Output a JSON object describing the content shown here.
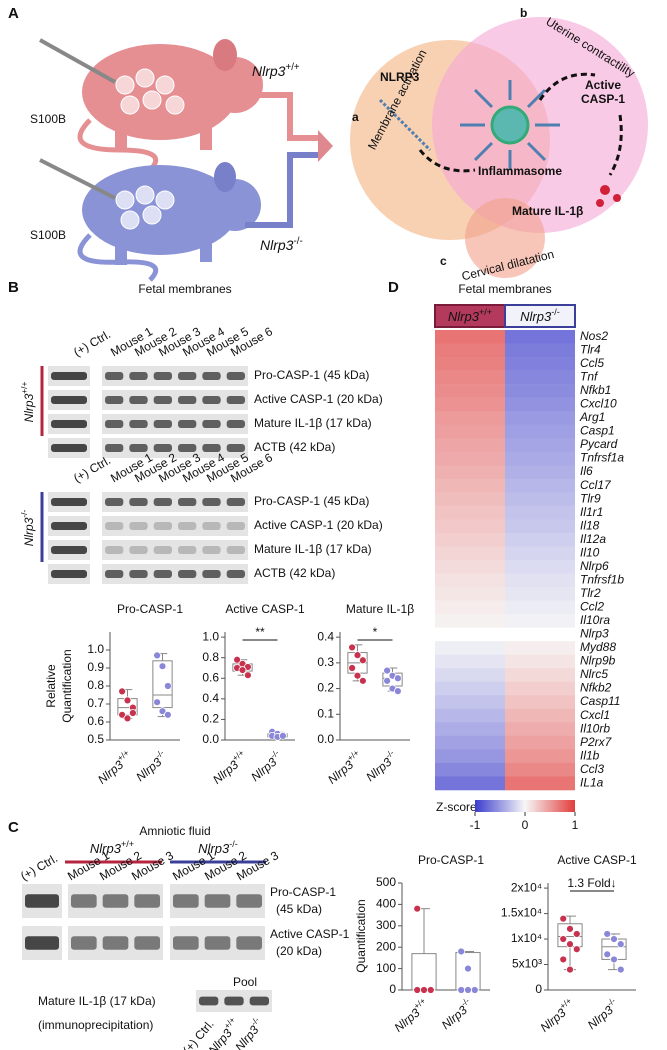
{
  "genotypes": [
    {
      "name": "Nlrp3",
      "sup": "+/+"
    },
    {
      "name": "Nlrp3",
      "sup": "-/-"
    }
  ],
  "panel_a": {
    "letter": "A",
    "stimulus": "S100B",
    "circles": [
      {
        "letter": "a",
        "label": "Membrane activation"
      },
      {
        "letter": "b",
        "label": "Uterine contractility"
      },
      {
        "letter": "c",
        "label": "Cervical dilatation"
      }
    ],
    "nlrp3": "NLRP3",
    "active_casp1": [
      "Active",
      "CASP-1"
    ],
    "inflammasome": "Inflammasome",
    "mature_il1b": "Mature IL-1β"
  },
  "panel_b": {
    "letter": "B",
    "tissue": "Fetal membranes",
    "ctrl": "(+) Ctrl.",
    "mice": [
      "Mouse 1",
      "Mouse 2",
      "Mouse 3",
      "Mouse 4",
      "Mouse 5",
      "Mouse 6"
    ],
    "bands": [
      "Pro-CASP-1 (45 kDa)",
      "Active CASP-1 (20 kDa)",
      "Mature IL-1β (17 kDa)",
      "ACTB (42 kDa)"
    ],
    "ylabel": [
      "Relative",
      "Quantification"
    ],
    "charts": [
      {
        "type": "box",
        "title": "Pro-CASP-1",
        "ylim": [
          0.5,
          1.1
        ],
        "yticks": [
          0.5,
          0.6,
          0.7,
          0.8,
          0.9,
          {
            "value": 1,
            "label": "1.0"
          }
        ],
        "groups": [
          {
            "color": "#c8324e",
            "points": [
              0.77,
              0.72,
              0.68,
              0.64,
              0.62,
              0.65
            ],
            "box": {
              "min": 0.62,
              "q1": 0.64,
              "median": 0.68,
              "q3": 0.73,
              "max": 0.78
            }
          },
          {
            "color": "#8a86d8",
            "points": [
              0.97,
              0.91,
              0.8,
              0.71,
              0.66,
              0.64
            ],
            "box": {
              "min": 0.63,
              "q1": 0.68,
              "median": 0.75,
              "q3": 0.94,
              "max": 0.98
            }
          }
        ]
      },
      {
        "type": "box",
        "title": "Active CASP-1",
        "ylim": [
          0,
          1.05
        ],
        "yticks": [
          {
            "value": 0,
            "label": "0.0"
          },
          0.2,
          0.4,
          0.6,
          0.8,
          {
            "value": 1,
            "label": "1.0"
          }
        ],
        "significance": "**",
        "groups": [
          {
            "color": "#c8324e",
            "points": [
              0.78,
              0.74,
              0.71,
              0.7,
              0.68,
              0.63
            ],
            "box": {
              "min": 0.63,
              "q1": 0.67,
              "median": 0.7,
              "q3": 0.74,
              "max": 0.78
            }
          },
          {
            "color": "#8a86d8",
            "points": [
              0.08,
              0.06,
              0.05,
              0.04,
              0.03,
              0.04
            ],
            "box": {
              "min": 0.02,
              "q1": 0.03,
              "median": 0.05,
              "q3": 0.06,
              "max": 0.08
            }
          }
        ]
      },
      {
        "type": "box",
        "title": "Mature IL-1β",
        "ylim": [
          0,
          0.42
        ],
        "yticks": [
          {
            "value": 0,
            "label": "0.0"
          },
          0.1,
          0.2,
          0.3,
          0.4
        ],
        "significance": "*",
        "groups": [
          {
            "color": "#c8324e",
            "points": [
              0.36,
              0.33,
              0.31,
              0.28,
              0.25,
              0.23
            ],
            "box": {
              "min": 0.23,
              "q1": 0.26,
              "median": 0.3,
              "q3": 0.34,
              "max": 0.37
            }
          },
          {
            "color": "#8a86d8",
            "points": [
              0.27,
              0.25,
              0.24,
              0.23,
              0.2,
              0.19
            ],
            "box": {
              "min": 0.19,
              "q1": 0.21,
              "median": 0.24,
              "q3": 0.26,
              "max": 0.28
            }
          }
        ]
      }
    ]
  },
  "panel_c": {
    "letter": "C",
    "tissue": "Amniotic fluid",
    "ctrl": "(+) Ctrl.",
    "mice": [
      "Mouse 1",
      "Mouse 2",
      "Mouse 3"
    ],
    "bands": [
      [
        "Pro-CASP-1",
        "(45 kDa)"
      ],
      [
        "Active CASP-1",
        "(20 kDa)"
      ]
    ],
    "pool": "Pool",
    "ip_label": [
      "Mature IL-1β (17 kDa)",
      "(immunoprecipitation)"
    ],
    "ylabel": "Quantification",
    "charts": [
      {
        "type": "box",
        "title": "Pro-CASP-1",
        "ylim": [
          0,
          500
        ],
        "yticks": [
          0,
          100,
          200,
          300,
          400,
          500
        ],
        "groups": [
          {
            "color": "#c8324e",
            "points": [
              380,
              0,
              0,
              0,
              0,
              0
            ],
            "box": {
              "min": 0,
              "q1": 0,
              "median": 0,
              "q3": 170,
              "max": 380
            }
          },
          {
            "color": "#8a86d8",
            "points": [
              180,
              100,
              0,
              0,
              0
            ],
            "box": {
              "min": 0,
              "q1": 0,
              "median": 0,
              "q3": 175,
              "max": 180
            }
          }
        ]
      },
      {
        "type": "box",
        "title": "Active CASP-1",
        "ylim": [
          0,
          21000
        ],
        "yticks": [
          0,
          {
            "value": 5000,
            "label": "5x10³"
          },
          {
            "value": 10000,
            "label": "1x10⁴"
          },
          {
            "value": 15000,
            "label": "1.5x10⁴"
          },
          {
            "value": 20000,
            "label": "2x10⁴"
          }
        ],
        "significance": "1.3 Fold↓",
        "groups": [
          {
            "color": "#c8324e",
            "points": [
              14000,
              12000,
              11000,
              10000,
              9000,
              8000,
              6000,
              4000
            ],
            "box": {
              "min": 4000,
              "q1": 8500,
              "median": 10500,
              "q3": 13000,
              "max": 14500
            }
          },
          {
            "color": "#8a86d8",
            "points": [
              11000,
              10000,
              9000,
              7000,
              6000,
              4000
            ],
            "box": {
              "min": 4000,
              "q1": 6000,
              "median": 8500,
              "q3": 10000,
              "max": 11000
            }
          }
        ]
      }
    ]
  },
  "panel_d": {
    "letter": "D",
    "tissue": "Fetal membranes",
    "genes": [
      "Nos2",
      "Tlr4",
      "Ccl5",
      "Tnf",
      "Nfkb1",
      "Cxcl10",
      "Arg1",
      "Casp1",
      "Pycard",
      "Tnfrsf1a",
      "Il6",
      "Ccl17",
      "Tlr9",
      "Il1r1",
      "Il18",
      "Il12a",
      "Il10",
      "Nlrp6",
      "Tnfrsf1b",
      "Tlr2",
      "Ccl2",
      "Il10ra",
      "Nlrp3",
      "Myd88",
      "Nlrp9b",
      "Nlrc5",
      "Nfkb2",
      "Casp11",
      "Cxcl1",
      "Il10rb",
      "P2rx7",
      "Il1b",
      "Ccl3",
      "IL1a"
    ],
    "series": [
      {
        "values": [
          0.7,
          0.66,
          0.63,
          0.6,
          0.57,
          0.54,
          0.5,
          0.47,
          0.44,
          0.41,
          0.38,
          0.34,
          0.31,
          0.28,
          0.25,
          0.22,
          0.18,
          0.15,
          0.12,
          0.09,
          0.06,
          0.03,
          null,
          -0.05,
          -0.1,
          -0.16,
          -0.22,
          -0.28,
          -0.34,
          -0.4,
          -0.46,
          -0.52,
          -0.6,
          -0.7
        ]
      },
      {
        "values": [
          -0.7,
          -0.66,
          -0.63,
          -0.6,
          -0.57,
          -0.54,
          -0.5,
          -0.47,
          -0.44,
          -0.41,
          -0.38,
          -0.34,
          -0.31,
          -0.28,
          -0.25,
          -0.22,
          -0.18,
          -0.15,
          -0.12,
          -0.09,
          -0.06,
          -0.03,
          null,
          0.05,
          0.1,
          0.16,
          0.22,
          0.28,
          0.34,
          0.4,
          0.46,
          0.52,
          0.6,
          0.7
        ]
      }
    ],
    "colorbar": {
      "label": "Z-score",
      "lim": [
        -1,
        1
      ],
      "ticks": [
        -1,
        0,
        1
      ]
    }
  }
}
